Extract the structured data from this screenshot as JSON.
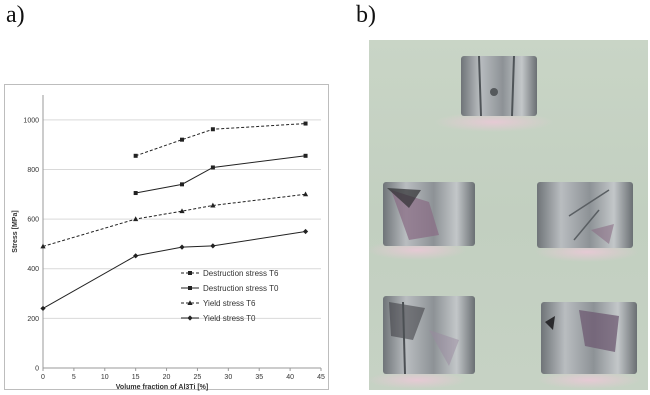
{
  "panels": {
    "a_label": "a)",
    "b_label": "b)"
  },
  "chart_data": {
    "type": "line",
    "title": "",
    "xlabel": "Volume fraction of Al3Ti [%]",
    "ylabel": "Stress [MPa]",
    "xlim": [
      0,
      45
    ],
    "ylim": [
      0,
      1100
    ],
    "xticks": [
      0,
      5,
      10,
      15,
      20,
      25,
      30,
      35,
      40,
      45
    ],
    "yticks": [
      0,
      200,
      400,
      600,
      800,
      1000
    ],
    "grid": "horizontal",
    "legend_position": "lower-right",
    "series": [
      {
        "name": "Destruction stress T6",
        "style": "dashed",
        "marker": "square",
        "x": [
          15,
          22.5,
          27.5,
          42.5
        ],
        "y": [
          855,
          920,
          962,
          985
        ]
      },
      {
        "name": "Destruction stress T0",
        "style": "solid",
        "marker": "square",
        "x": [
          15,
          22.5,
          27.5,
          42.5
        ],
        "y": [
          705,
          740,
          808,
          855
        ]
      },
      {
        "name": "Yield stress T6",
        "style": "dashed",
        "marker": "triangle",
        "x": [
          0,
          15,
          22.5,
          27.5,
          42.5
        ],
        "y": [
          490,
          600,
          632,
          655,
          700
        ]
      },
      {
        "name": "Yield stress T0",
        "style": "solid",
        "marker": "diamond",
        "x": [
          0,
          15,
          22.5,
          27.5,
          42.5
        ],
        "y": [
          240,
          452,
          487,
          492,
          550
        ]
      }
    ]
  },
  "colors": {
    "line": "#222222",
    "grid": "#d9d9d9",
    "photo_background": "#c5d2c2"
  }
}
